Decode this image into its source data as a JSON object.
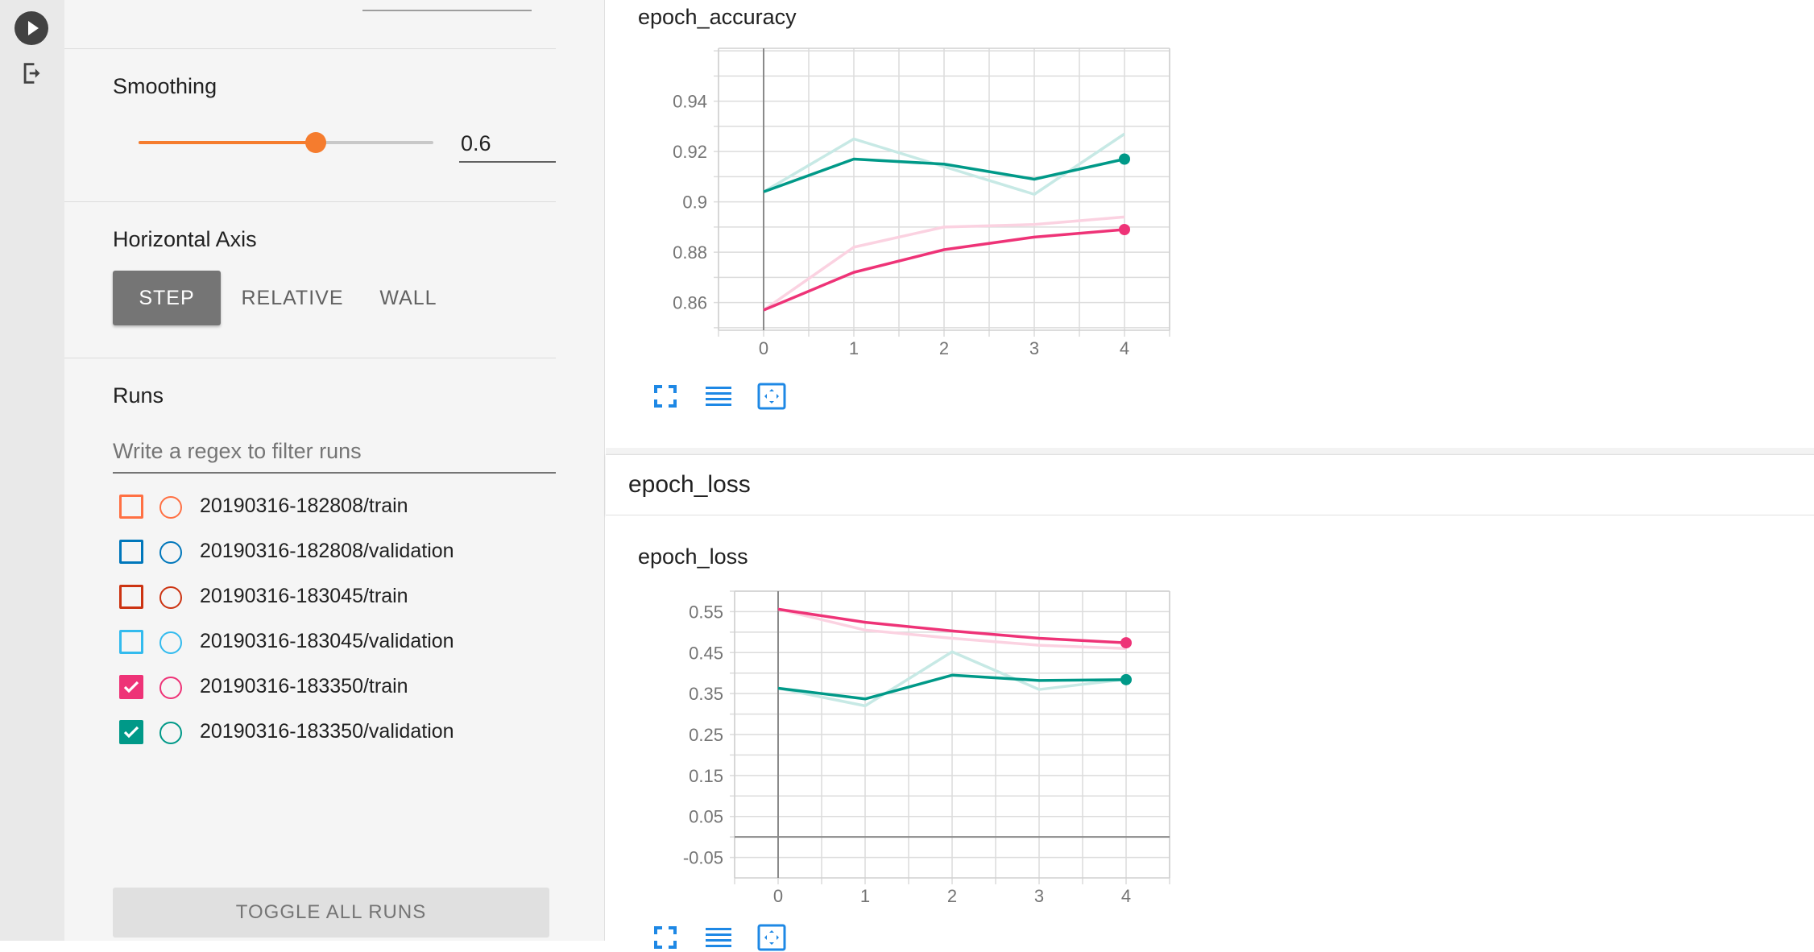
{
  "sidebar": {
    "smoothing_label": "Smoothing",
    "smoothing_value": "0.6",
    "smoothing_fraction": 0.6,
    "horizontal_axis_label": "Horizontal Axis",
    "axis_options": [
      "STEP",
      "RELATIVE",
      "WALL"
    ],
    "axis_selected": "STEP",
    "runs_label": "Runs",
    "filter_placeholder": "Write a regex to filter runs",
    "runs": [
      {
        "name": "20190316-182808/train",
        "color": "#ff7043",
        "checked": false
      },
      {
        "name": "20190316-182808/validation",
        "color": "#0077bb",
        "checked": false
      },
      {
        "name": "20190316-183045/train",
        "color": "#cc3311",
        "checked": false
      },
      {
        "name": "20190316-183045/validation",
        "color": "#33bbee",
        "checked": false
      },
      {
        "name": "20190316-183350/train",
        "color": "#ee3377",
        "checked": true
      },
      {
        "name": "20190316-183350/validation",
        "color": "#009988",
        "checked": true
      }
    ],
    "toggle_all_label": "TOGGLE ALL RUNS"
  },
  "main": {
    "section_loss_title": "epoch_loss"
  },
  "chart_data": [
    {
      "type": "line",
      "title": "epoch_accuracy",
      "x": [
        0,
        1,
        2,
        3,
        4
      ],
      "xticks": [
        "0",
        "1",
        "2",
        "3",
        "4"
      ],
      "yticks": [
        "0.86",
        "0.88",
        "0.9",
        "0.92",
        "0.94"
      ],
      "ylim": [
        0.849,
        0.961
      ],
      "xlim": [
        -0.5,
        4.5
      ],
      "grid": true,
      "series": [
        {
          "color": "#009988",
          "smoothed": [
            0.904,
            0.917,
            0.915,
            0.909,
            0.917
          ],
          "raw": [
            0.904,
            0.925,
            0.914,
            0.903,
            0.927
          ]
        },
        {
          "color": "#ee3377",
          "smoothed": [
            0.857,
            0.872,
            0.881,
            0.886,
            0.889
          ],
          "raw": [
            0.857,
            0.882,
            0.89,
            0.891,
            0.894
          ]
        }
      ]
    },
    {
      "type": "line",
      "title": "epoch_loss",
      "x": [
        0,
        1,
        2,
        3,
        4
      ],
      "xticks": [
        "0",
        "1",
        "2",
        "3",
        "4"
      ],
      "yticks": [
        "0.55",
        "0.45",
        "0.35",
        "0.25",
        "0.15",
        "0.05",
        "-0.05"
      ],
      "ylim": [
        -0.1,
        0.6
      ],
      "xlim": [
        -0.5,
        4.5
      ],
      "grid": true,
      "series": [
        {
          "color": "#ee3377",
          "smoothed": [
            0.556,
            0.524,
            0.503,
            0.485,
            0.474
          ],
          "raw": [
            0.556,
            0.505,
            0.485,
            0.468,
            0.46
          ]
        },
        {
          "color": "#009988",
          "smoothed": [
            0.363,
            0.337,
            0.395,
            0.382,
            0.384
          ],
          "raw": [
            0.363,
            0.32,
            0.452,
            0.36,
            0.385
          ]
        }
      ]
    }
  ]
}
